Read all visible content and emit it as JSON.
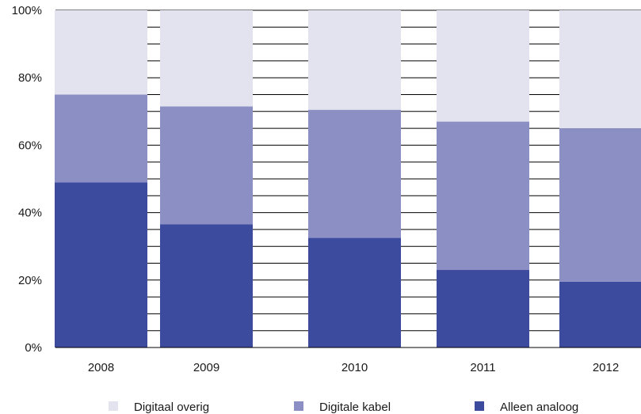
{
  "chart_data": {
    "type": "bar",
    "stacked": true,
    "percent_stacked": true,
    "categories": [
      "2008",
      "2009",
      "2010",
      "2011",
      "2012"
    ],
    "series": [
      {
        "name": "Alleen analoog",
        "color": "#3d4b9e",
        "values": [
          49,
          36.5,
          32.5,
          23,
          19.5
        ]
      },
      {
        "name": "Digitale kabel",
        "color": "#8b8fc4",
        "values": [
          26,
          35,
          38,
          44,
          45.5
        ]
      },
      {
        "name": "Digitaal overig",
        "color": "#e3e3ef",
        "values": [
          25,
          28.5,
          29.5,
          33,
          35
        ]
      }
    ],
    "legend_order": [
      "Digitaal overig",
      "Digitale kabel",
      "Alleen analoog"
    ],
    "y_ticks": [
      "0%",
      "20%",
      "40%",
      "60%",
      "80%",
      "100%"
    ],
    "ylim": [
      0,
      100
    ],
    "grid": true,
    "legend_position": "bottom",
    "title": "",
    "xlabel": "",
    "ylabel": ""
  }
}
